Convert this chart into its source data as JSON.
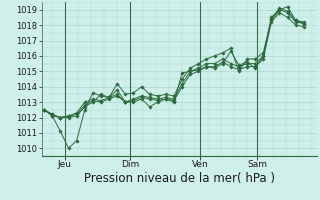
{
  "bg_color": "#cff0ea",
  "grid_color": "#a8d8d0",
  "line_color": "#2d6a3f",
  "marker_color": "#2d6a3f",
  "xlabel": "Pression niveau de la mer( hPa )",
  "xlabel_fontsize": 8.5,
  "ylim": [
    1009.5,
    1019.5
  ],
  "yticks": [
    1010,
    1011,
    1012,
    1013,
    1014,
    1015,
    1016,
    1017,
    1018,
    1019
  ],
  "xtick_labels": [
    "Jeu",
    "Dim",
    "Ven",
    "Sam"
  ],
  "xtick_positions": [
    0.08,
    0.33,
    0.6,
    0.82
  ],
  "vline_positions": [
    0.08,
    0.33,
    0.6,
    0.82
  ],
  "series": [
    [
      1012.5,
      1012.1,
      1011.1,
      1010.0,
      1010.5,
      1012.5,
      1013.6,
      1013.4,
      1013.3,
      1013.8,
      1013.0,
      1013.0,
      1013.2,
      1012.7,
      1013.0,
      1013.2,
      1013.0,
      1014.9,
      1015.0,
      1015.1,
      1015.3,
      1015.2,
      1015.5,
      1016.3,
      1015.4,
      1015.6,
      1015.2,
      1016.0,
      1018.3,
      1019.0,
      1019.2,
      1018.3,
      1018.1
    ],
    [
      1012.5,
      1012.2,
      1012.0,
      1012.1,
      1012.3,
      1013.0,
      1013.2,
      1013.1,
      1013.3,
      1013.5,
      1013.0,
      1013.2,
      1013.4,
      1013.3,
      1013.2,
      1013.3,
      1013.2,
      1014.2,
      1015.0,
      1015.2,
      1015.5,
      1015.5,
      1015.8,
      1015.5,
      1015.3,
      1015.5,
      1015.5,
      1016.0,
      1018.5,
      1019.0,
      1018.8,
      1018.2,
      1018.1
    ],
    [
      1012.5,
      1012.2,
      1012.0,
      1012.1,
      1012.2,
      1012.8,
      1013.1,
      1013.0,
      1013.2,
      1013.4,
      1013.0,
      1013.1,
      1013.3,
      1013.2,
      1013.1,
      1013.2,
      1013.1,
      1014.0,
      1014.8,
      1015.0,
      1015.3,
      1015.3,
      1015.6,
      1015.3,
      1015.1,
      1015.3,
      1015.3,
      1015.8,
      1018.2,
      1018.8,
      1018.5,
      1018.0,
      1017.9
    ],
    [
      1012.5,
      1012.1,
      1012.0,
      1012.0,
      1012.1,
      1012.7,
      1013.0,
      1013.5,
      1013.3,
      1014.2,
      1013.5,
      1013.6,
      1014.0,
      1013.5,
      1013.4,
      1013.5,
      1013.4,
      1014.5,
      1015.2,
      1015.5,
      1015.8,
      1016.0,
      1016.2,
      1016.5,
      1015.0,
      1015.8,
      1015.8,
      1016.2,
      1018.4,
      1019.1,
      1018.9,
      1018.3,
      1018.2
    ]
  ],
  "figsize": [
    3.2,
    2.0
  ],
  "dpi": 100
}
